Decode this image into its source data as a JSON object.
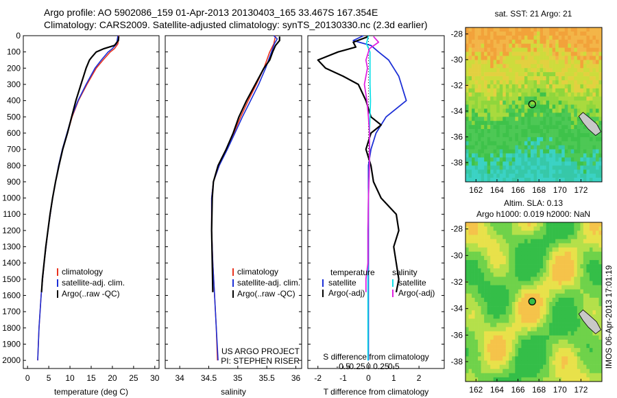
{
  "header": {
    "line1": "Argo profile: AO 5902086_159 01-Apr-2013 20130403_165 33.467S 167.354E",
    "line2": "Climatology: CARS2009. Satellite-adjusted climatology: synTS_20130330.nc (2.3d earlier)"
  },
  "side_text": "IMOS 06-Apr-2013 17:01:19",
  "credit": {
    "line1": "US ARGO PROJECT",
    "line2": "PI: STEPHEN RISER"
  },
  "colors": {
    "climatology": "#e8321e",
    "satellite": "#1c2fd6",
    "argo": "#000000",
    "s_satellite": "#12e0e8",
    "s_argo": "#e020e0"
  },
  "chart_data": [
    {
      "type": "line",
      "panel": "temperature",
      "xlabel": "temperature (deg C)",
      "xlim": [
        -1,
        31
      ],
      "ylim": [
        2050,
        0
      ],
      "xticks": [
        0,
        5,
        10,
        15,
        20,
        25,
        30
      ],
      "yticks": [
        0,
        100,
        200,
        300,
        400,
        500,
        600,
        700,
        800,
        900,
        1000,
        1100,
        1200,
        1300,
        1400,
        1500,
        1600,
        1700,
        1800,
        1900,
        2000
      ],
      "legend": [
        "climatology",
        "satellite-adj. clim.",
        "Argo(..raw -QC)"
      ],
      "series": [
        {
          "name": "climatology",
          "depth": [
            0,
            50,
            80,
            100,
            150,
            200,
            300,
            400,
            500,
            600,
            700,
            800,
            900,
            1000,
            1200,
            1400,
            1600,
            1800,
            2000
          ],
          "values": [
            21.5,
            21.3,
            20.5,
            19.5,
            17.8,
            16.2,
            14.0,
            12.0,
            10.5,
            9.4,
            8.3,
            7.4,
            6.6,
            5.9,
            4.8,
            3.9,
            3.2,
            2.7,
            2.4
          ]
        },
        {
          "name": "satellite-adj. clim.",
          "depth": [
            0,
            50,
            80,
            100,
            150,
            200,
            300,
            400,
            500,
            600,
            700,
            800,
            900,
            1000,
            1200,
            1400,
            1600,
            1800,
            2000
          ],
          "values": [
            21.3,
            21.0,
            20.0,
            19.0,
            17.4,
            15.9,
            13.8,
            11.9,
            10.4,
            9.3,
            8.2,
            7.3,
            6.6,
            5.9,
            4.8,
            3.9,
            3.2,
            2.7,
            2.4
          ]
        },
        {
          "name": "Argo(..raw -QC)",
          "depth": [
            5,
            30,
            60,
            80,
            100,
            130,
            150,
            200,
            250,
            300,
            350,
            400,
            500,
            600,
            700,
            800,
            900,
            1000,
            1100,
            1200,
            1300,
            1400,
            1500,
            1580
          ],
          "values": [
            21.5,
            21.4,
            20.5,
            18.0,
            16.2,
            15.2,
            14.6,
            13.8,
            13.2,
            12.6,
            12.0,
            11.4,
            10.4,
            9.4,
            8.3,
            7.4,
            6.6,
            5.9,
            5.3,
            4.8,
            4.3,
            3.9,
            3.5,
            3.3
          ]
        }
      ]
    },
    {
      "type": "line",
      "panel": "salinity",
      "xlabel": "salinity",
      "xlim": [
        33.75,
        36.1
      ],
      "ylim": [
        2050,
        0
      ],
      "xticks": [
        34,
        34.5,
        35,
        35.5,
        36
      ],
      "legend": [
        "climatology",
        "satellite-adj. clim.",
        "Argo(..raw -QC)"
      ],
      "series": [
        {
          "name": "climatology",
          "depth": [
            0,
            50,
            100,
            200,
            300,
            400,
            500,
            600,
            700,
            800,
            900,
            1000,
            1200,
            1400,
            1600,
            1800,
            2000
          ],
          "values": [
            35.65,
            35.62,
            35.55,
            35.45,
            35.32,
            35.18,
            35.05,
            34.93,
            34.8,
            34.68,
            34.58,
            34.55,
            34.55,
            34.57,
            34.6,
            34.63,
            34.65
          ]
        },
        {
          "name": "satellite-adj. clim.",
          "depth": [
            0,
            20,
            50,
            100,
            200,
            300,
            400,
            500,
            600,
            700,
            800,
            900,
            1000,
            1200,
            1400,
            1600,
            1800,
            2000
          ],
          "values": [
            35.62,
            35.68,
            35.63,
            35.58,
            35.48,
            35.36,
            35.22,
            35.08,
            34.95,
            34.82,
            34.68,
            34.58,
            34.55,
            34.55,
            34.57,
            34.6,
            34.63,
            34.66
          ]
        },
        {
          "name": "Argo(..raw -QC)",
          "depth": [
            5,
            30,
            60,
            100,
            150,
            200,
            300,
            400,
            500,
            600,
            700,
            800,
            900,
            1000,
            1200,
            1400,
            1580
          ],
          "values": [
            35.72,
            35.72,
            35.65,
            35.6,
            35.55,
            35.45,
            35.3,
            35.15,
            35.02,
            34.92,
            34.8,
            34.66,
            34.58,
            34.56,
            34.55,
            34.56,
            34.57
          ]
        }
      ]
    },
    {
      "type": "line",
      "panel": "difference",
      "xlabel": "T difference from climatology",
      "top_label": "S difference from climatology",
      "xlim": [
        -2.4,
        3.0
      ],
      "ylim": [
        2050,
        0
      ],
      "xticks": [
        -2,
        -1,
        0,
        1,
        2
      ],
      "top_ticks": [
        "-0.5",
        "-0.25",
        "0",
        "0.25",
        "0.5"
      ],
      "legend_groups": [
        {
          "title": "temperature",
          "items": [
            "satellite",
            "Argo(-adj)"
          ]
        },
        {
          "title": "salinity",
          "items": [
            "satellite",
            "Argo(-adj)"
          ]
        }
      ],
      "series": [
        {
          "name": "temperature satellite",
          "depth": [
            0,
            30,
            60,
            100,
            150,
            200,
            250,
            300,
            350,
            400,
            500,
            600,
            700,
            800,
            1000,
            1200,
            1400,
            1600,
            1800,
            2000
          ],
          "values": [
            -0.2,
            -0.6,
            0.1,
            0.4,
            0.8,
            1.0,
            1.2,
            1.3,
            1.4,
            1.5,
            0.7,
            0.3,
            0.1,
            0.0,
            0.0,
            0.0,
            0.0,
            0.0,
            0.0,
            0.0
          ]
        },
        {
          "name": "temperature Argo(-adj)",
          "depth": [
            5,
            40,
            70,
            100,
            150,
            200,
            250,
            300,
            400,
            500,
            550,
            600,
            700,
            800,
            900,
            1000,
            1100,
            1200,
            1300,
            1400,
            1500,
            1580
          ],
          "values": [
            0.0,
            -0.6,
            -0.5,
            -1.2,
            -2.0,
            -1.7,
            -1.0,
            -0.4,
            -0.1,
            0.1,
            0.5,
            0.1,
            -0.1,
            0.1,
            0.2,
            0.5,
            1.1,
            1.2,
            1.0,
            1.1,
            1.2,
            1.1
          ]
        },
        {
          "name": "salinity satellite",
          "depth": [
            0,
            50,
            100,
            200,
            300,
            400,
            500,
            600,
            800,
            1000,
            1200,
            1400,
            1600,
            1800,
            2000
          ],
          "values": [
            0.0,
            -0.04,
            0.03,
            0.03,
            0.03,
            0.04,
            0.03,
            0.02,
            0.02,
            0.0,
            -0.01,
            -0.01,
            -0.01,
            -0.01,
            -0.01
          ]
        },
        {
          "name": "salinity Argo(-adj)",
          "depth": [
            5,
            40,
            80,
            150,
            200,
            300,
            400,
            500,
            600,
            800,
            1000,
            1200,
            1400,
            1500,
            1580
          ],
          "values": [
            0.1,
            0.2,
            0.02,
            -0.05,
            -0.02,
            -0.08,
            -0.03,
            0.0,
            0.02,
            0.02,
            0.0,
            -0.01,
            -0.01,
            -0.05,
            -0.05
          ]
        }
      ]
    },
    {
      "type": "heatmap",
      "panel": "sst_map",
      "title": "sat. SST: 21 Argo: 21",
      "xticks": [
        "162",
        "164",
        "166",
        "168",
        "170",
        "172"
      ],
      "yticks": [
        "-28",
        "-30",
        "-32",
        "-34",
        "-36",
        "-38"
      ],
      "xlim": [
        161,
        174
      ],
      "ylim": [
        -39.5,
        -27.5
      ],
      "float_position": [
        167.354,
        -33.467
      ]
    },
    {
      "type": "heatmap",
      "panel": "sla_map",
      "title_line1": "Altim. SLA: 0.13",
      "title_line2": "Argo h1000: 0.019 h2000: NaN",
      "xticks": [
        "162",
        "164",
        "166",
        "168",
        "170",
        "172"
      ],
      "yticks": [
        "-28",
        "-30",
        "-32",
        "-34",
        "-36",
        "-38"
      ],
      "xlim": [
        161,
        174
      ],
      "ylim": [
        -39.5,
        -27.5
      ],
      "float_position": [
        167.354,
        -33.467
      ]
    }
  ]
}
